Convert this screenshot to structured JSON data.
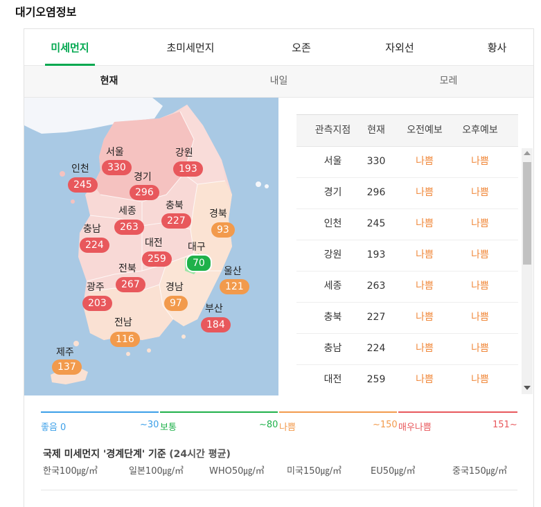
{
  "page_title": "대기오염정보",
  "tabs": [
    "미세먼지",
    "초미세먼지",
    "오존",
    "자외선",
    "황사"
  ],
  "days": [
    "현재",
    "내일",
    "모레"
  ],
  "colors": {
    "accent": "#00a84f",
    "bad": "#e8585c",
    "normal": "#f29a4c",
    "good": "#1fb14a",
    "grade_text": "#f0883b"
  },
  "map": {
    "regions": [
      {
        "name": "서울",
        "value": "330",
        "level": "bad"
      },
      {
        "name": "인천",
        "value": "245",
        "level": "bad"
      },
      {
        "name": "경기",
        "value": "296",
        "level": "bad"
      },
      {
        "name": "강원",
        "value": "193",
        "level": "bad"
      },
      {
        "name": "세종",
        "value": "263",
        "level": "bad"
      },
      {
        "name": "충북",
        "value": "227",
        "level": "bad"
      },
      {
        "name": "경북",
        "value": "93",
        "level": "normal"
      },
      {
        "name": "충남",
        "value": "224",
        "level": "bad"
      },
      {
        "name": "대전",
        "value": "259",
        "level": "bad"
      },
      {
        "name": "대구",
        "value": "70",
        "level": "good"
      },
      {
        "name": "전북",
        "value": "267",
        "level": "bad"
      },
      {
        "name": "울산",
        "value": "121",
        "level": "normal"
      },
      {
        "name": "광주",
        "value": "203",
        "level": "bad"
      },
      {
        "name": "경남",
        "value": "97",
        "level": "normal"
      },
      {
        "name": "부산",
        "value": "184",
        "level": "bad"
      },
      {
        "name": "전남",
        "value": "116",
        "level": "normal"
      },
      {
        "name": "제주",
        "value": "137",
        "level": "normal"
      }
    ]
  },
  "table": {
    "headers": [
      "관측지점",
      "현재",
      "오전예보",
      "오후예보"
    ],
    "rows": [
      {
        "site": "서울",
        "now": "330",
        "am": "나쁨",
        "pm": "나쁨"
      },
      {
        "site": "경기",
        "now": "296",
        "am": "나쁨",
        "pm": "나쁨"
      },
      {
        "site": "인천",
        "now": "245",
        "am": "나쁨",
        "pm": "나쁨"
      },
      {
        "site": "강원",
        "now": "193",
        "am": "나쁨",
        "pm": "나쁨"
      },
      {
        "site": "세종",
        "now": "263",
        "am": "나쁨",
        "pm": "나쁨"
      },
      {
        "site": "충북",
        "now": "227",
        "am": "나쁨",
        "pm": "나쁨"
      },
      {
        "site": "충남",
        "now": "224",
        "am": "나쁨",
        "pm": "나쁨"
      },
      {
        "site": "대전",
        "now": "259",
        "am": "나쁨",
        "pm": "나쁨"
      }
    ]
  },
  "legend": {
    "good": "좋음 0",
    "normal_bound": "~30",
    "normal": "보통",
    "bad_bound": "~80",
    "bad": "나쁨",
    "verybad_bound": "~150",
    "verybad": "매우나쁨",
    "max": "151~",
    "colors": [
      "#3b9fe8",
      "#1fb14a",
      "#f29a4c",
      "#e8585c"
    ]
  },
  "standard": {
    "title": "국제 미세먼지 '경계단계' 기준",
    "subtitle": "(24시간 평균)",
    "items": [
      "한국100㎍/㎥",
      "일본100㎍/㎥",
      "WHO50㎍/㎥",
      "미국150㎍/㎥",
      "EU50㎍/㎥",
      "중국150㎍/㎥"
    ]
  }
}
